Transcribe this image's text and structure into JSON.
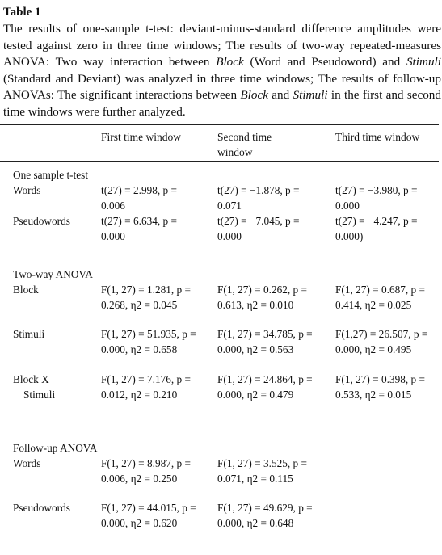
{
  "table_label": "Table 1",
  "caption": {
    "part1": "The results of one-sample t-test: deviant-minus-standard difference amplitudes were tested against zero in three time windows; The results of two-way repeated-measures ANOVA: Two way interaction between ",
    "block": "Block",
    "part2": " (Word and Pseudoword) and ",
    "stimuli": "Stimuli",
    "part3": " (Standard and Deviant) was analyzed in three time windows; The results of follow-up ANOVAs: The significant interactions between ",
    "block2": "Block",
    "part4": " and ",
    "stimuli2": "Stimuli",
    "part5": " in the first and second time windows were further analyzed."
  },
  "columns": [
    "First time window",
    "Second time window",
    "Third time window"
  ],
  "sections": {
    "ttest": "One sample t-test",
    "anova": "Two-way ANOVA",
    "followup": "Follow-up ANOVA"
  },
  "rows": {
    "tt_words": {
      "label": "Words",
      "c1": "t(27) = 2.998, p = 0.006",
      "c2": "t(27) = −1.878, p = 0.071",
      "c3": "t(27) = −3.980, p = 0.000"
    },
    "tt_pseudo": {
      "label": "Pseudowords",
      "c1": "t(27) = 6.634, p = 0.000",
      "c2": "t(27) = −7.045, p = 0.000",
      "c3": "t(27) = −4.247, p = 0.000)"
    },
    "an_block": {
      "label": "Block",
      "c1": "F(1, 27) = 1.281, p = 0.268, η2 = 0.045",
      "c2": "F(1, 27) = 0.262, p = 0.613, η2 = 0.010",
      "c3": "F(1, 27) = 0.687, p = 0.414, η2 = 0.025"
    },
    "an_stimuli": {
      "label": "Stimuli",
      "c1": "F(1, 27) = 51.935, p = 0.000, η2 = 0.658",
      "c2": "F(1, 27) = 34.785, p = 0.000, η2 = 0.563",
      "c3": "F(1,27) = 26.507, p = 0.000, η2 = 0.495"
    },
    "an_inter": {
      "label1": "Block X",
      "label2": "Stimuli",
      "c1": "F(1, 27) = 7.176, p = 0.012, η2 = 0.210",
      "c2": "F(1, 27) = 24.864, p = 0.000, η2 = 0.479",
      "c3": "F(1, 27) = 0.398, p = 0.533, η2 = 0.015"
    },
    "fu_words": {
      "label": "Words",
      "c1": "F(1, 27) = 8.987, p = 0.006, η2 = 0.250",
      "c2": "F(1, 27) = 3.525, p = 0.071, η2 = 0.115"
    },
    "fu_pseudo": {
      "label": "Pseudowords",
      "c1": "F(1, 27) = 44.015, p = 0.000, η2 = 0.620",
      "c2": "F(1, 27) = 49.629, p = 0.000, η2 = 0.648"
    }
  }
}
